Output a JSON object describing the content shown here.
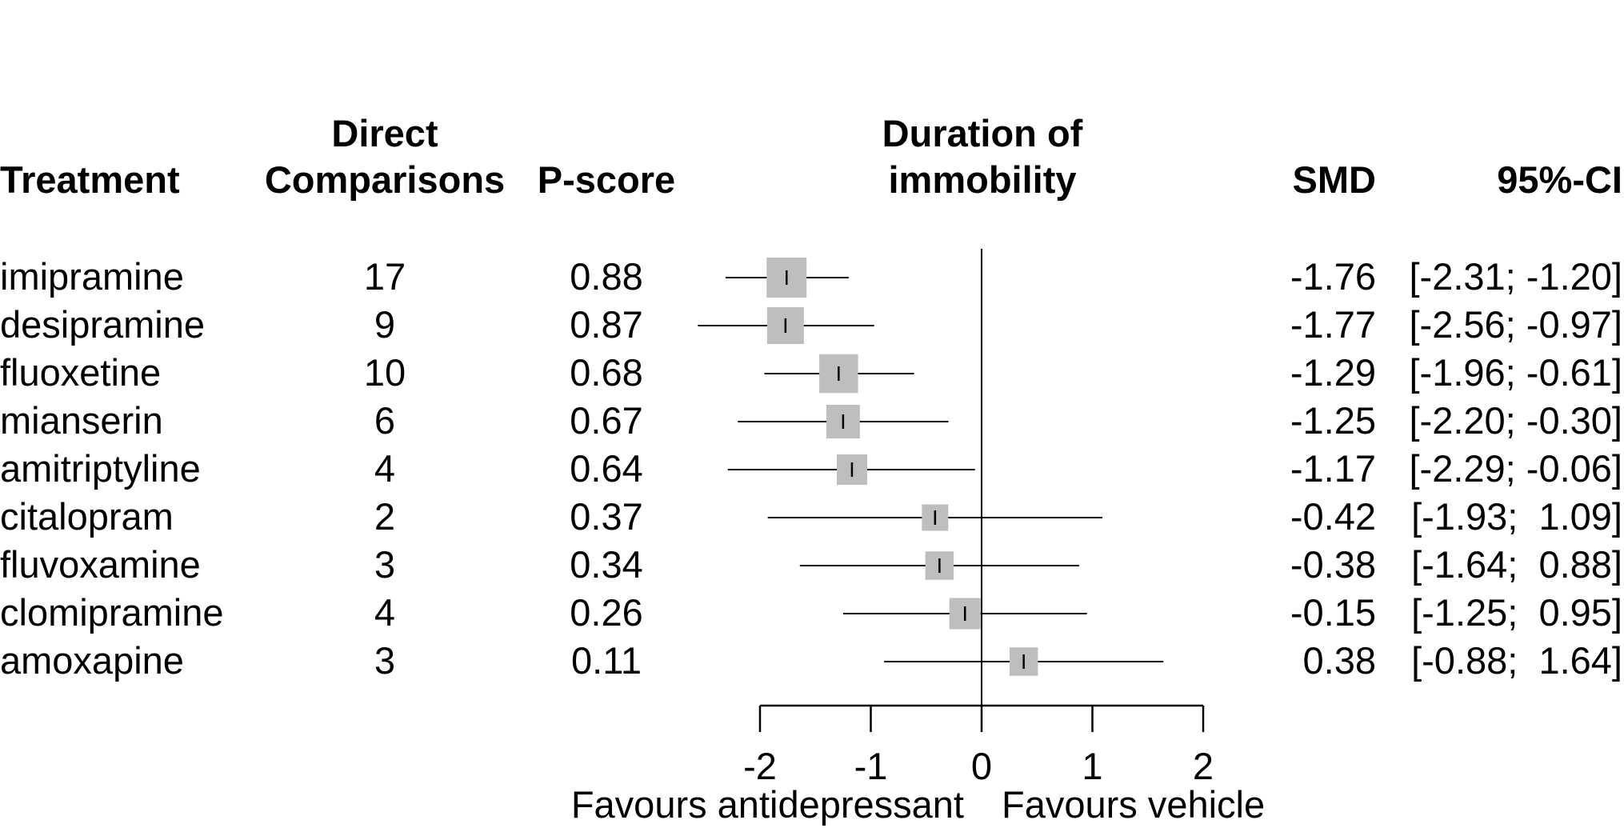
{
  "chart_data": {
    "type": "forest",
    "headers": {
      "treatment": "Treatment",
      "direct_comparisons_line1": "Direct",
      "direct_comparisons_line2": "Comparisons",
      "pscore": "P-score",
      "outcome_line1": "Duration of",
      "outcome_line2": "immobility",
      "smd": "SMD",
      "ci": "95%-CI"
    },
    "rows": [
      {
        "treatment": "imipramine",
        "direct": "17",
        "pscore": "0.88",
        "smd": -1.76,
        "lower": -2.31,
        "upper": -1.2,
        "smd_label": "-1.76",
        "ci_label": "[-2.31; -1.20]",
        "weight": 1.0
      },
      {
        "treatment": "desipramine",
        "direct": "9",
        "pscore": "0.87",
        "smd": -1.77,
        "lower": -2.56,
        "upper": -0.97,
        "smd_label": "-1.77",
        "ci_label": "[-2.56; -0.97]",
        "weight": 0.92
      },
      {
        "treatment": "fluoxetine",
        "direct": "10",
        "pscore": "0.68",
        "smd": -1.29,
        "lower": -1.96,
        "upper": -0.61,
        "smd_label": "-1.29",
        "ci_label": "[-1.96; -0.61]",
        "weight": 0.97
      },
      {
        "treatment": "mianserin",
        "direct": "6",
        "pscore": "0.67",
        "smd": -1.25,
        "lower": -2.2,
        "upper": -0.3,
        "smd_label": "-1.25",
        "ci_label": "[-2.20; -0.30]",
        "weight": 0.84
      },
      {
        "treatment": "amitriptyline",
        "direct": "4",
        "pscore": "0.64",
        "smd": -1.17,
        "lower": -2.29,
        "upper": -0.06,
        "smd_label": "-1.17",
        "ci_label": "[-2.29; -0.06]",
        "weight": 0.76
      },
      {
        "treatment": "citalopram",
        "direct": "2",
        "pscore": "0.37",
        "smd": -0.42,
        "lower": -1.93,
        "upper": 1.09,
        "smd_label": "-0.42",
        "ci_label": "[-1.93;  1.09]",
        "weight": 0.66
      },
      {
        "treatment": "fluvoxamine",
        "direct": "3",
        "pscore": "0.34",
        "smd": -0.38,
        "lower": -1.64,
        "upper": 0.88,
        "smd_label": "-0.38",
        "ci_label": "[-1.64;  0.88]",
        "weight": 0.71
      },
      {
        "treatment": "clomipramine",
        "direct": "4",
        "pscore": "0.26",
        "smd": -0.15,
        "lower": -1.25,
        "upper": 0.95,
        "smd_label": "-0.15",
        "ci_label": "[-1.25;  0.95]",
        "weight": 0.78
      },
      {
        "treatment": "amoxapine",
        "direct": "3",
        "pscore": "0.11",
        "smd": 0.38,
        "lower": -0.88,
        "upper": 1.64,
        "smd_label": "0.38",
        "ci_label": "[-0.88;  1.64]",
        "weight": 0.71
      }
    ],
    "xlim": [
      -2,
      2
    ],
    "xticks": [
      -2,
      -1,
      0,
      1,
      2
    ],
    "xtick_labels": [
      "-2",
      "-1",
      "0",
      "1",
      "2"
    ],
    "reference_line": 0,
    "label_left": "Favours antidepressant",
    "label_right": "Favours vehicle",
    "colors": {
      "square": "#bebebe",
      "line": "#000000"
    }
  }
}
